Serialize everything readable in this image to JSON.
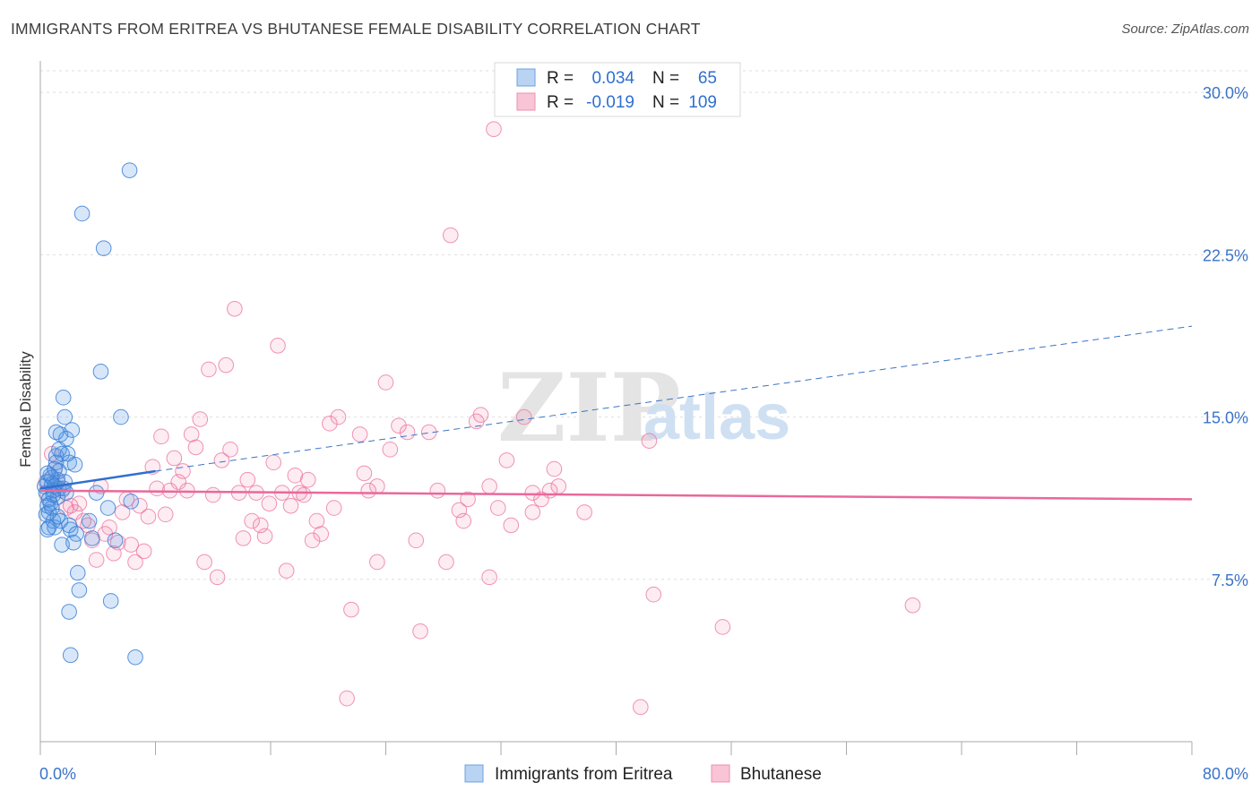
{
  "header": {
    "title": "IMMIGRANTS FROM ERITREA VS BHUTANESE FEMALE DISABILITY CORRELATION CHART",
    "source": "Source: ZipAtlas.com"
  },
  "watermark": {
    "zip": "ZIP",
    "atlas": "atlas"
  },
  "colors": {
    "blue": "#4a90e2",
    "pink": "#f06292",
    "blue_line": "#2f6fcf",
    "pink_line": "#e8699a"
  },
  "chart_data": {
    "type": "scatter",
    "ylabel": "Female Disability",
    "xlim": [
      0,
      80
    ],
    "ylim": [
      0,
      31
    ],
    "x_tick_labels": [
      "0.0%",
      "80.0%"
    ],
    "y_ticks": [
      7.5,
      15.0,
      22.5,
      30.0
    ],
    "y_tick_labels": [
      "7.5%",
      "15.0%",
      "22.5%",
      "30.0%"
    ],
    "legend": {
      "rows": [
        {
          "r_label": "R =",
          "r_value": "0.034",
          "n_label": "N =",
          "n_value": "65"
        },
        {
          "r_label": "R =",
          "r_value": "-0.019",
          "n_label": "N =",
          "n_value": "109"
        }
      ]
    },
    "series": [
      {
        "name": "Immigrants from Eritrea",
        "color": "#4a90e2",
        "trend": {
          "x0": 0,
          "y0": 11.7,
          "x1": 8,
          "y1": 12.5,
          "dash_x1": 80,
          "dash_y1": 19.2
        },
        "points": [
          [
            0.3,
            11.8
          ],
          [
            0.4,
            11.5
          ],
          [
            0.5,
            12.0
          ],
          [
            0.6,
            11.2
          ],
          [
            0.4,
            10.5
          ],
          [
            0.5,
            9.8
          ],
          [
            0.6,
            10.6
          ],
          [
            0.8,
            11.9
          ],
          [
            0.9,
            11.6
          ],
          [
            1.0,
            12.6
          ],
          [
            1.1,
            13.2
          ],
          [
            1.2,
            12.1
          ],
          [
            1.3,
            11.7
          ],
          [
            0.7,
            12.3
          ],
          [
            0.9,
            10.2
          ],
          [
            1.0,
            9.9
          ],
          [
            0.6,
            9.9
          ],
          [
            0.8,
            10.8
          ],
          [
            1.4,
            14.2
          ],
          [
            1.5,
            13.3
          ],
          [
            1.6,
            15.9
          ],
          [
            1.7,
            15.0
          ],
          [
            1.8,
            14.0
          ],
          [
            1.9,
            13.3
          ],
          [
            2.0,
            12.9
          ],
          [
            2.2,
            14.4
          ],
          [
            1.3,
            13.5
          ],
          [
            1.1,
            12.9
          ],
          [
            1.2,
            11.3
          ],
          [
            1.4,
            10.2
          ],
          [
            1.5,
            9.1
          ],
          [
            1.6,
            11.7
          ],
          [
            1.8,
            11.5
          ],
          [
            2.0,
            10.0
          ],
          [
            2.1,
            9.8
          ],
          [
            2.3,
            9.2
          ],
          [
            2.5,
            9.6
          ],
          [
            2.6,
            7.8
          ],
          [
            2.7,
            7.0
          ],
          [
            2.9,
            24.4
          ],
          [
            3.4,
            10.2
          ],
          [
            3.6,
            9.4
          ],
          [
            3.9,
            11.5
          ],
          [
            4.2,
            17.1
          ],
          [
            4.4,
            22.8
          ],
          [
            4.7,
            10.8
          ],
          [
            4.9,
            6.5
          ],
          [
            5.2,
            9.3
          ],
          [
            5.6,
            15.0
          ],
          [
            6.2,
            26.4
          ],
          [
            6.3,
            11.1
          ],
          [
            2.0,
            6.0
          ],
          [
            2.1,
            4.0
          ],
          [
            6.6,
            3.9
          ],
          [
            0.5,
            10.9
          ],
          [
            0.8,
            12.2
          ],
          [
            1.0,
            11.8
          ],
          [
            1.3,
            12.5
          ],
          [
            0.9,
            11.4
          ],
          [
            0.7,
            11.0
          ],
          [
            1.2,
            10.4
          ],
          [
            1.7,
            12.0
          ],
          [
            2.4,
            12.8
          ],
          [
            0.5,
            12.4
          ],
          [
            1.1,
            14.3
          ]
        ]
      },
      {
        "name": "Bhutanese",
        "color": "#f06292",
        "trend": {
          "x0": 0,
          "y0": 11.6,
          "x1": 80,
          "y1": 11.2
        },
        "points": [
          [
            0.4,
            12.0
          ],
          [
            0.6,
            11.2
          ],
          [
            0.8,
            13.3
          ],
          [
            1.0,
            12.6
          ],
          [
            1.2,
            12.0
          ],
          [
            1.5,
            11.6
          ],
          [
            1.8,
            10.8
          ],
          [
            2.1,
            10.9
          ],
          [
            2.4,
            10.6
          ],
          [
            2.7,
            11.0
          ],
          [
            3.0,
            10.2
          ],
          [
            3.3,
            10.0
          ],
          [
            3.6,
            9.3
          ],
          [
            3.9,
            8.4
          ],
          [
            4.2,
            11.8
          ],
          [
            4.5,
            9.6
          ],
          [
            4.8,
            9.9
          ],
          [
            5.1,
            8.7
          ],
          [
            5.4,
            9.2
          ],
          [
            5.7,
            10.6
          ],
          [
            6.0,
            11.2
          ],
          [
            6.3,
            9.1
          ],
          [
            6.6,
            8.3
          ],
          [
            6.9,
            10.9
          ],
          [
            7.2,
            8.8
          ],
          [
            7.5,
            10.4
          ],
          [
            7.8,
            12.7
          ],
          [
            8.1,
            11.7
          ],
          [
            8.4,
            14.1
          ],
          [
            8.7,
            10.5
          ],
          [
            9.0,
            11.6
          ],
          [
            9.3,
            13.1
          ],
          [
            9.6,
            12.0
          ],
          [
            9.9,
            12.5
          ],
          [
            10.2,
            11.6
          ],
          [
            10.5,
            14.2
          ],
          [
            10.8,
            13.6
          ],
          [
            11.1,
            14.9
          ],
          [
            11.4,
            8.3
          ],
          [
            11.7,
            17.2
          ],
          [
            12.0,
            11.4
          ],
          [
            12.3,
            7.6
          ],
          [
            12.6,
            13.0
          ],
          [
            12.9,
            17.4
          ],
          [
            13.2,
            13.5
          ],
          [
            13.5,
            20.0
          ],
          [
            13.8,
            11.5
          ],
          [
            14.1,
            9.4
          ],
          [
            14.4,
            12.1
          ],
          [
            14.7,
            10.2
          ],
          [
            15.0,
            11.5
          ],
          [
            15.3,
            10.0
          ],
          [
            15.6,
            9.5
          ],
          [
            15.9,
            11.0
          ],
          [
            16.2,
            12.9
          ],
          [
            16.5,
            18.3
          ],
          [
            16.8,
            11.5
          ],
          [
            17.1,
            7.9
          ],
          [
            17.4,
            10.9
          ],
          [
            17.7,
            12.3
          ],
          [
            18.0,
            11.5
          ],
          [
            18.3,
            11.4
          ],
          [
            18.6,
            12.1
          ],
          [
            18.9,
            9.3
          ],
          [
            19.2,
            10.2
          ],
          [
            19.5,
            9.6
          ],
          [
            20.1,
            14.7
          ],
          [
            20.4,
            10.8
          ],
          [
            20.7,
            15.0
          ],
          [
            21.3,
            2.0
          ],
          [
            21.6,
            6.1
          ],
          [
            22.2,
            14.2
          ],
          [
            22.5,
            12.4
          ],
          [
            22.8,
            11.6
          ],
          [
            23.4,
            8.3
          ],
          [
            24.0,
            16.6
          ],
          [
            24.3,
            13.5
          ],
          [
            24.9,
            14.6
          ],
          [
            25.5,
            14.3
          ],
          [
            26.1,
            9.3
          ],
          [
            26.4,
            5.1
          ],
          [
            27.0,
            14.3
          ],
          [
            27.6,
            11.6
          ],
          [
            28.5,
            23.4
          ],
          [
            29.1,
            10.7
          ],
          [
            29.7,
            11.2
          ],
          [
            30.3,
            14.8
          ],
          [
            30.6,
            15.1
          ],
          [
            31.8,
            10.8
          ],
          [
            31.2,
            11.8
          ],
          [
            32.4,
            13.0
          ],
          [
            32.7,
            10.0
          ],
          [
            33.6,
            15.0
          ],
          [
            34.2,
            11.5
          ],
          [
            34.8,
            11.2
          ],
          [
            35.7,
            12.6
          ],
          [
            36.0,
            11.8
          ],
          [
            37.8,
            10.6
          ],
          [
            41.7,
            1.6
          ],
          [
            42.3,
            13.9
          ],
          [
            42.6,
            6.8
          ],
          [
            47.4,
            5.3
          ],
          [
            60.6,
            6.3
          ],
          [
            31.2,
            7.6
          ],
          [
            29.4,
            10.2
          ],
          [
            34.2,
            10.6
          ],
          [
            23.4,
            11.8
          ],
          [
            28.2,
            8.3
          ],
          [
            35.4,
            11.6
          ]
        ]
      }
    ]
  },
  "bottom_legend": [
    {
      "label": "Immigrants from Eritrea",
      "color": "#4a90e2"
    },
    {
      "label": "Bhutanese",
      "color": "#f06292"
    }
  ],
  "outlier_labelled": [
    [
      31.5,
      28.3
    ]
  ]
}
